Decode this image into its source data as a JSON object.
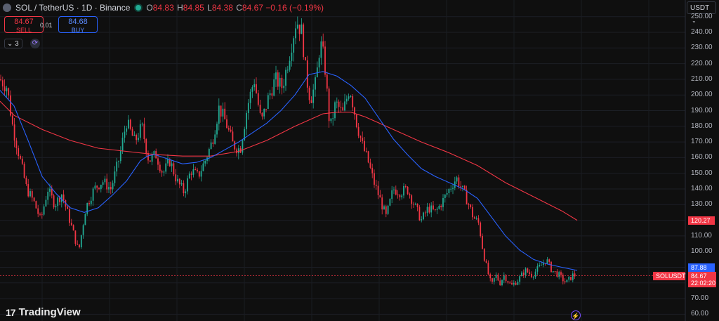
{
  "header": {
    "title": "SOL / TetherUS · 1D · Binance",
    "open_label": "O",
    "open": "84.83",
    "high_label": "H",
    "high": "84.85",
    "low_label": "L",
    "low": "84.38",
    "close_label": "C",
    "close": "84.67",
    "change": "−0.16 (−0.19%)"
  },
  "trade": {
    "sell_price": "84.67",
    "sell_label": "SELL",
    "spread": "0.01",
    "buy_price": "84.68",
    "buy_label": "BUY"
  },
  "indicators": {
    "count": "3"
  },
  "currency": "USDT",
  "logo_text": "TradingView",
  "price_tags": {
    "ma_long": "120.27",
    "ma_short": "87.88",
    "symbol": "SOLUSDT",
    "last": "84.67",
    "countdown": "22:02:20"
  },
  "colors": {
    "up": "#22ab94",
    "down": "#f23645",
    "ma_short": "#2962ff",
    "ma_long": "#f23645",
    "background": "#0f0f0f"
  },
  "chart_data": {
    "type": "candlestick",
    "y_axis_ticks": [
      250,
      240,
      230,
      220,
      210,
      200,
      190,
      180,
      170,
      160,
      150,
      140,
      130,
      120,
      110,
      100,
      90,
      80,
      70,
      60
    ],
    "ylim": [
      57,
      255
    ],
    "ma_short": [
      [
        0,
        203
      ],
      [
        20,
        193
      ],
      [
        40,
        171
      ],
      [
        60,
        148
      ],
      [
        80,
        137
      ],
      [
        100,
        128
      ],
      [
        120,
        125
      ],
      [
        140,
        128
      ],
      [
        160,
        136
      ],
      [
        180,
        145
      ],
      [
        200,
        158
      ],
      [
        210,
        161
      ],
      [
        220,
        162
      ],
      [
        240,
        159
      ],
      [
        260,
        156
      ],
      [
        280,
        157
      ],
      [
        300,
        160
      ],
      [
        320,
        165
      ],
      [
        340,
        170
      ],
      [
        360,
        176
      ],
      [
        380,
        182
      ],
      [
        400,
        190
      ],
      [
        420,
        200
      ],
      [
        440,
        213
      ],
      [
        460,
        215
      ],
      [
        480,
        212
      ],
      [
        500,
        206
      ],
      [
        520,
        198
      ],
      [
        540,
        185
      ],
      [
        560,
        172
      ],
      [
        580,
        162
      ],
      [
        600,
        153
      ],
      [
        620,
        148
      ],
      [
        640,
        144
      ],
      [
        660,
        140
      ],
      [
        680,
        134
      ],
      [
        700,
        122
      ],
      [
        720,
        110
      ],
      [
        740,
        101
      ],
      [
        760,
        95
      ],
      [
        780,
        92
      ],
      [
        800,
        90
      ],
      [
        822,
        88
      ]
    ],
    "ma_long": [
      [
        0,
        196
      ],
      [
        20,
        187
      ],
      [
        60,
        178
      ],
      [
        100,
        171
      ],
      [
        140,
        166
      ],
      [
        180,
        164
      ],
      [
        220,
        162
      ],
      [
        260,
        161
      ],
      [
        300,
        161
      ],
      [
        340,
        164
      ],
      [
        380,
        171
      ],
      [
        420,
        180
      ],
      [
        460,
        188
      ],
      [
        480,
        189
      ],
      [
        500,
        189
      ],
      [
        520,
        186
      ],
      [
        540,
        182
      ],
      [
        560,
        178
      ],
      [
        600,
        170
      ],
      [
        640,
        163
      ],
      [
        680,
        155
      ],
      [
        720,
        144
      ],
      [
        760,
        135
      ],
      [
        800,
        126
      ],
      [
        822,
        120
      ]
    ],
    "price_path": [
      [
        0,
        210
      ],
      [
        10,
        205
      ],
      [
        18,
        180
      ],
      [
        28,
        160
      ],
      [
        38,
        140
      ],
      [
        48,
        132
      ],
      [
        58,
        120
      ],
      [
        68,
        140
      ],
      [
        78,
        130
      ],
      [
        88,
        137
      ],
      [
        98,
        122
      ],
      [
        112,
        100
      ],
      [
        122,
        128
      ],
      [
        134,
        140
      ],
      [
        146,
        145
      ],
      [
        158,
        140
      ],
      [
        170,
        160
      ],
      [
        180,
        183
      ],
      [
        192,
        170
      ],
      [
        202,
        180
      ],
      [
        212,
        158
      ],
      [
        222,
        162
      ],
      [
        232,
        150
      ],
      [
        242,
        158
      ],
      [
        252,
        145
      ],
      [
        262,
        138
      ],
      [
        272,
        152
      ],
      [
        282,
        148
      ],
      [
        292,
        158
      ],
      [
        302,
        170
      ],
      [
        312,
        192
      ],
      [
        322,
        182
      ],
      [
        332,
        168
      ],
      [
        342,
        165
      ],
      [
        352,
        192
      ],
      [
        362,
        210
      ],
      [
        372,
        182
      ],
      [
        382,
        198
      ],
      [
        392,
        210
      ],
      [
        402,
        205
      ],
      [
        412,
        225
      ],
      [
        422,
        248
      ],
      [
        430,
        240
      ],
      [
        436,
        212
      ],
      [
        442,
        197
      ],
      [
        450,
        208
      ],
      [
        456,
        234
      ],
      [
        462,
        222
      ],
      [
        470,
        178
      ],
      [
        478,
        195
      ],
      [
        488,
        188
      ],
      [
        498,
        205
      ],
      [
        508,
        182
      ],
      [
        516,
        168
      ],
      [
        524,
        158
      ],
      [
        532,
        145
      ],
      [
        540,
        135
      ],
      [
        550,
        122
      ],
      [
        560,
        140
      ],
      [
        570,
        138
      ],
      [
        580,
        140
      ],
      [
        590,
        130
      ],
      [
        600,
        120
      ],
      [
        610,
        128
      ],
      [
        620,
        125
      ],
      [
        630,
        132
      ],
      [
        640,
        140
      ],
      [
        650,
        147
      ],
      [
        658,
        140
      ],
      [
        666,
        132
      ],
      [
        674,
        122
      ],
      [
        682,
        118
      ],
      [
        688,
        100
      ],
      [
        694,
        88
      ],
      [
        700,
        78
      ],
      [
        706,
        85
      ],
      [
        712,
        80
      ],
      [
        718,
        85
      ],
      [
        728,
        78
      ],
      [
        738,
        82
      ],
      [
        748,
        88
      ],
      [
        758,
        85
      ],
      [
        768,
        90
      ],
      [
        778,
        95
      ],
      [
        786,
        88
      ],
      [
        796,
        85
      ],
      [
        806,
        80
      ],
      [
        816,
        85
      ],
      [
        820,
        84.67
      ]
    ]
  }
}
